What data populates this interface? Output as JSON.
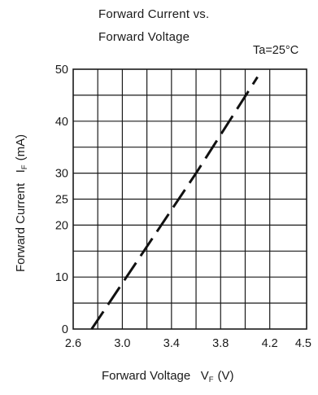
{
  "chart_data": {
    "type": "line",
    "title_lines": [
      "Forward Current vs.",
      "Forward Voltage"
    ],
    "condition": "Ta=25°C",
    "xlabel": "Forward Voltage   V",
    "xlabel_sub": "F",
    "xlabel_unit": "(V)",
    "ylabel": "Forward Current   I",
    "ylabel_sub": "F",
    "ylabel_unit": "(mA)",
    "xlim": [
      2.6,
      4.5
    ],
    "ylim": [
      0,
      50
    ],
    "x_tick_labels": [
      "2.6",
      "3.0",
      "3.4",
      "3.8",
      "4.2",
      "4.5"
    ],
    "y_tick_labels": [
      "0",
      "10",
      "20",
      "25",
      "30",
      "40",
      "50"
    ],
    "grid": true,
    "series": [
      {
        "style": "dashed",
        "x": [
          2.75,
          3.6,
          4.1
        ],
        "y": [
          0,
          30,
          48.5
        ]
      }
    ]
  }
}
